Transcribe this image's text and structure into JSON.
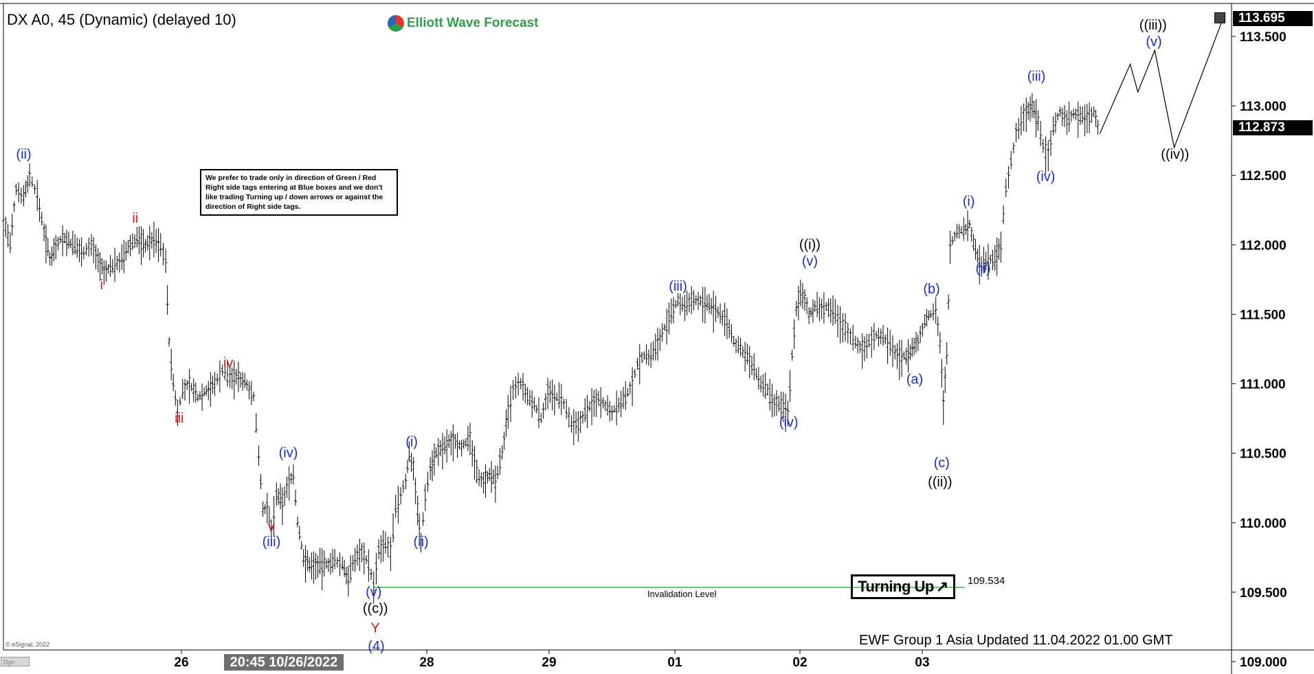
{
  "header": {
    "title": "DX A0, 45 (Dynamic) (delayed 10)",
    "brand": "Elliott Wave Forecast"
  },
  "note": "We prefer to trade only in direction of Green / Red Right side tags entering at Blue boxes and we don't like trading Turning up / down arrows or against the direction of Right side tags.",
  "turning_label": "Turning Up",
  "footer": "EWF Group 1 Asia Updated 11.04.2022 01.00 GMT",
  "credit": "© eSignal, 2022",
  "corner_button": "Dyn",
  "crosshair_date": "20:45 10/26/2022",
  "price_tags": {
    "top": "113.695",
    "current": "112.873"
  },
  "colors": {
    "wave_blue": "#1a2ecb",
    "wave_red": "#d21a1a",
    "wave_black": "#000000",
    "invalidation_green": "#2fbf3a",
    "brand_green": "#2f9e4a"
  },
  "chart_data": {
    "type": "line",
    "ylim": [
      108.95,
      113.8
    ],
    "y_ticks": [
      "113.500",
      "113.000",
      "112.500",
      "112.000",
      "111.500",
      "111.000",
      "110.500",
      "110.000",
      "109.500",
      "109.000"
    ],
    "x_ticks": [
      "26",
      "28",
      "29",
      "01",
      "02",
      "03"
    ],
    "grid": false,
    "invalidation": {
      "value": 109.534,
      "label": "109.534",
      "text": "Invalidation Level"
    },
    "price_path": [
      [
        0,
        112.2
      ],
      [
        8,
        112.0
      ],
      [
        15,
        112.4
      ],
      [
        24,
        112.35
      ],
      [
        31,
        112.5
      ],
      [
        40,
        112.35
      ],
      [
        48,
        112.1
      ],
      [
        55,
        111.9
      ],
      [
        62,
        112.0
      ],
      [
        70,
        112.05
      ],
      [
        82,
        112.0
      ],
      [
        95,
        111.95
      ],
      [
        104,
        112.0
      ],
      [
        112,
        111.9
      ],
      [
        119,
        111.8
      ],
      [
        129,
        111.85
      ],
      [
        140,
        111.9
      ],
      [
        150,
        112.0
      ],
      [
        158,
        112.05
      ],
      [
        168,
        112.0
      ],
      [
        178,
        112.05
      ],
      [
        186,
        112.0
      ],
      [
        192,
        111.9
      ],
      [
        196,
        111.3
      ],
      [
        201,
        111.0
      ],
      [
        206,
        110.8
      ],
      [
        212,
        110.95
      ],
      [
        220,
        111.0
      ],
      [
        230,
        110.9
      ],
      [
        240,
        110.95
      ],
      [
        250,
        111.0
      ],
      [
        259,
        111.1
      ],
      [
        268,
        111.05
      ],
      [
        278,
        111.05
      ],
      [
        288,
        111.0
      ],
      [
        296,
        110.9
      ],
      [
        302,
        110.5
      ],
      [
        307,
        110.1
      ],
      [
        312,
        110.1
      ],
      [
        317,
        109.95
      ],
      [
        323,
        110.2
      ],
      [
        330,
        110.15
      ],
      [
        338,
        110.3
      ],
      [
        343,
        110.35
      ],
      [
        348,
        110.0
      ],
      [
        355,
        109.75
      ],
      [
        362,
        109.7
      ],
      [
        372,
        109.7
      ],
      [
        382,
        109.7
      ],
      [
        392,
        109.72
      ],
      [
        401,
        109.7
      ],
      [
        408,
        109.6
      ],
      [
        416,
        109.75
      ],
      [
        424,
        109.8
      ],
      [
        432,
        109.7
      ],
      [
        438,
        109.55
      ],
      [
        444,
        109.8
      ],
      [
        452,
        109.85
      ],
      [
        458,
        109.8
      ],
      [
        464,
        110.1
      ],
      [
        470,
        110.2
      ],
      [
        476,
        110.3
      ],
      [
        480,
        110.5
      ],
      [
        485,
        110.4
      ],
      [
        490,
        110.1
      ],
      [
        494,
        109.85
      ],
      [
        499,
        110.2
      ],
      [
        505,
        110.4
      ],
      [
        512,
        110.5
      ],
      [
        522,
        110.55
      ],
      [
        532,
        110.6
      ],
      [
        542,
        110.55
      ],
      [
        552,
        110.6
      ],
      [
        560,
        110.35
      ],
      [
        568,
        110.3
      ],
      [
        575,
        110.35
      ],
      [
        582,
        110.3
      ],
      [
        590,
        110.5
      ],
      [
        597,
        110.8
      ],
      [
        603,
        110.95
      ],
      [
        612,
        111.0
      ],
      [
        620,
        110.9
      ],
      [
        628,
        110.85
      ],
      [
        636,
        110.75
      ],
      [
        644,
        110.95
      ],
      [
        652,
        110.9
      ],
      [
        660,
        110.9
      ],
      [
        666,
        110.8
      ],
      [
        672,
        110.7
      ],
      [
        680,
        110.7
      ],
      [
        688,
        110.8
      ],
      [
        696,
        110.85
      ],
      [
        704,
        110.9
      ],
      [
        712,
        110.85
      ],
      [
        720,
        110.8
      ],
      [
        728,
        110.85
      ],
      [
        736,
        110.9
      ],
      [
        744,
        111.0
      ],
      [
        750,
        111.15
      ],
      [
        758,
        111.2
      ],
      [
        766,
        111.2
      ],
      [
        774,
        111.3
      ],
      [
        782,
        111.4
      ],
      [
        790,
        111.5
      ],
      [
        798,
        111.6
      ],
      [
        806,
        111.55
      ],
      [
        814,
        111.6
      ],
      [
        822,
        111.6
      ],
      [
        830,
        111.58
      ],
      [
        840,
        111.55
      ],
      [
        848,
        111.5
      ],
      [
        856,
        111.45
      ],
      [
        864,
        111.3
      ],
      [
        872,
        111.25
      ],
      [
        880,
        111.2
      ],
      [
        888,
        111.1
      ],
      [
        896,
        111.0
      ],
      [
        904,
        110.95
      ],
      [
        912,
        110.85
      ],
      [
        920,
        110.85
      ],
      [
        928,
        110.8
      ],
      [
        933,
        111.2
      ],
      [
        938,
        111.55
      ],
      [
        943,
        111.65
      ],
      [
        948,
        111.6
      ],
      [
        953,
        111.5
      ],
      [
        960,
        111.55
      ],
      [
        968,
        111.55
      ],
      [
        976,
        111.55
      ],
      [
        984,
        111.5
      ],
      [
        990,
        111.45
      ],
      [
        996,
        111.4
      ],
      [
        1002,
        111.35
      ],
      [
        1008,
        111.3
      ],
      [
        1016,
        111.25
      ],
      [
        1024,
        111.3
      ],
      [
        1030,
        111.35
      ],
      [
        1038,
        111.35
      ],
      [
        1046,
        111.3
      ],
      [
        1052,
        111.25
      ],
      [
        1060,
        111.2
      ],
      [
        1068,
        111.2
      ],
      [
        1075,
        111.25
      ],
      [
        1082,
        111.3
      ],
      [
        1090,
        111.45
      ],
      [
        1097,
        111.5
      ],
      [
        1103,
        111.55
      ],
      [
        1108,
        111.3
      ],
      [
        1112,
        110.85
      ],
      [
        1116,
        111.2
      ],
      [
        1120,
        112.0
      ],
      [
        1128,
        112.1
      ],
      [
        1136,
        112.1
      ],
      [
        1143,
        112.15
      ],
      [
        1150,
        111.95
      ],
      [
        1157,
        111.85
      ],
      [
        1165,
        111.9
      ],
      [
        1173,
        111.9
      ],
      [
        1180,
        112.0
      ],
      [
        1186,
        112.4
      ],
      [
        1192,
        112.6
      ],
      [
        1198,
        112.8
      ],
      [
        1204,
        112.9
      ],
      [
        1210,
        112.95
      ],
      [
        1217,
        113.0
      ],
      [
        1224,
        112.9
      ],
      [
        1230,
        112.7
      ],
      [
        1236,
        112.65
      ],
      [
        1242,
        112.85
      ],
      [
        1250,
        112.95
      ],
      [
        1258,
        112.9
      ],
      [
        1266,
        112.95
      ],
      [
        1274,
        112.92
      ],
      [
        1282,
        112.92
      ],
      [
        1290,
        112.95
      ],
      [
        1297,
        112.8
      ]
    ],
    "projection": [
      [
        1297,
        112.8
      ],
      [
        1333,
        113.3
      ],
      [
        1342,
        113.1
      ],
      [
        1362,
        113.4
      ],
      [
        1385,
        112.7
      ],
      [
        1441,
        113.6
      ]
    ],
    "wave_labels": [
      {
        "text": "(ii)",
        "x": 24,
        "y": 112.62,
        "color": "blue"
      },
      {
        "text": "ii",
        "x": 156,
        "y": 112.16,
        "color": "red"
      },
      {
        "text": "i",
        "x": 116,
        "y": 111.68,
        "color": "red"
      },
      {
        "text": "iii",
        "x": 208,
        "y": 110.72,
        "color": "red"
      },
      {
        "text": "iv",
        "x": 266,
        "y": 111.12,
        "color": "red"
      },
      {
        "text": "v",
        "x": 317,
        "y": 109.94,
        "color": "red"
      },
      {
        "text": "(iii)",
        "x": 317,
        "y": 109.83,
        "color": "blue"
      },
      {
        "text": "(iv)",
        "x": 337,
        "y": 110.47,
        "color": "blue"
      },
      {
        "text": "(v)",
        "x": 438,
        "y": 109.47,
        "color": "blue"
      },
      {
        "text": "((c))",
        "x": 440,
        "y": 109.35,
        "color": "black"
      },
      {
        "text": "Y",
        "x": 440,
        "y": 109.21,
        "color": "red"
      },
      {
        "text": "(4)",
        "x": 441,
        "y": 109.08,
        "color": "blue"
      },
      {
        "text": "(i)",
        "x": 483,
        "y": 110.55,
        "color": "blue"
      },
      {
        "text": "(ii)",
        "x": 494,
        "y": 109.83,
        "color": "blue"
      },
      {
        "text": "(iii)",
        "x": 798,
        "y": 111.67,
        "color": "blue"
      },
      {
        "text": "(iv)",
        "x": 929,
        "y": 110.69,
        "color": "blue"
      },
      {
        "text": "((i))",
        "x": 954,
        "y": 111.97,
        "color": "black"
      },
      {
        "text": "(v)",
        "x": 954,
        "y": 111.85,
        "color": "blue"
      },
      {
        "text": "(a)",
        "x": 1078,
        "y": 111.0,
        "color": "blue"
      },
      {
        "text": "(b)",
        "x": 1098,
        "y": 111.65,
        "color": "blue"
      },
      {
        "text": "(c)",
        "x": 1110,
        "y": 110.4,
        "color": "blue"
      },
      {
        "text": "((ii))",
        "x": 1108,
        "y": 110.26,
        "color": "black"
      },
      {
        "text": "(i)",
        "x": 1142,
        "y": 112.28,
        "color": "blue"
      },
      {
        "text": "(ii)",
        "x": 1159,
        "y": 111.8,
        "color": "blue"
      },
      {
        "text": "(iii)",
        "x": 1222,
        "y": 113.18,
        "color": "blue"
      },
      {
        "text": "(iv)",
        "x": 1233,
        "y": 112.46,
        "color": "blue"
      },
      {
        "text": "((iii))",
        "x": 1360,
        "y": 113.55,
        "color": "black"
      },
      {
        "text": "(v)",
        "x": 1361,
        "y": 113.43,
        "color": "blue"
      },
      {
        "text": "((iv))",
        "x": 1386,
        "y": 112.62,
        "color": "black"
      }
    ]
  }
}
